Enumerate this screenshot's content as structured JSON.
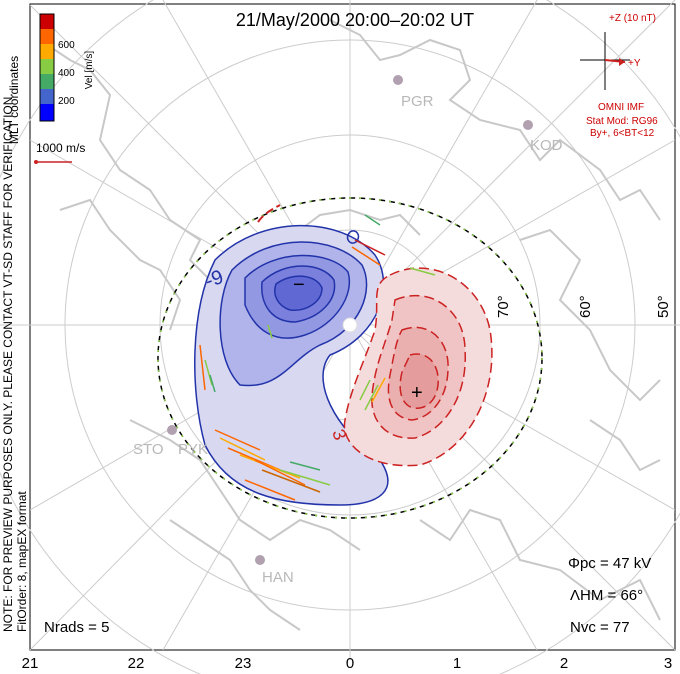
{
  "title": "21/May/2000 20:00–20:02 UT",
  "coords_label": "MLT coordinates",
  "colorbar": {
    "label": "Vel [m/s]",
    "ticks": [
      "600",
      "400",
      "200"
    ],
    "colors": [
      "#cc0000",
      "#ff6600",
      "#ffaa00",
      "#88cc44",
      "#44aa66",
      "#4466cc",
      "#0000ff"
    ]
  },
  "vector_scale": "1000 m/s",
  "side_note_1": "NOTE: FOR PREVIEW PURPOSES ONLY. PLEASE CONTACT VT-SD STAFF FOR VERIFICATION.",
  "side_note_2": "FitOrder: 8, mapEX format",
  "imf": {
    "z_label": "+Z (10 nT)",
    "y_label": "+Y",
    "source": "OMNI IMF",
    "model_line1": "Stat Mod: RG96",
    "model_line2": "By+, 6<BT<12"
  },
  "stations": [
    "PGR",
    "KOD",
    "STO",
    "PYK",
    "HAN"
  ],
  "lat_labels": [
    "70°",
    "60°",
    "50°"
  ],
  "contour_labels": [
    "-9",
    "3"
  ],
  "pole_markers": {
    "min": "−",
    "max": "+"
  },
  "stats": {
    "phi_pc": "Φpc = 47 kV",
    "lambda_hm": "ΛHM = 66°",
    "n_vc": "Nvc = 77",
    "n_rads": "Nrads = 5"
  },
  "mlt_ticks": [
    "21",
    "22",
    "23",
    "0",
    "1",
    "2",
    "3"
  ],
  "colors": {
    "negative_cell": "#3344cc",
    "positive_cell": "#cc2222",
    "hm_boundary": "#88cc44"
  }
}
